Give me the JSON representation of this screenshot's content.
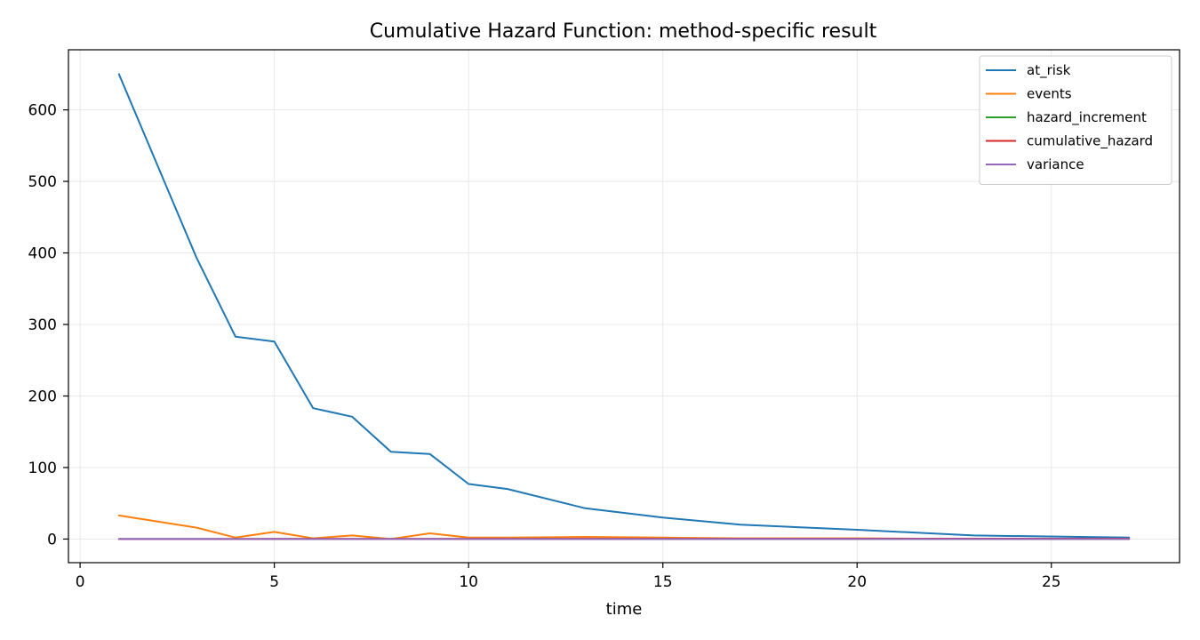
{
  "chart_data": {
    "type": "line",
    "title": "Cumulative Hazard Function: method-specific result",
    "xlabel": "time",
    "ylabel": "",
    "xlim": [
      -0.3,
      28.3
    ],
    "ylim": [
      -33,
      684
    ],
    "xticks": [
      0,
      5,
      10,
      15,
      20,
      25
    ],
    "yticks": [
      0,
      100,
      200,
      300,
      400,
      500,
      600
    ],
    "grid": true,
    "legend_position": "top-right",
    "series": [
      {
        "name": "at_risk",
        "color": "#1f77b4",
        "x": [
          1,
          3,
          4,
          5,
          6,
          7,
          8,
          9,
          10,
          11,
          13,
          15,
          17,
          20,
          23,
          27
        ],
        "y": [
          650,
          393,
          283,
          276,
          183,
          171,
          122,
          119,
          77,
          70,
          43,
          30,
          20,
          13,
          5,
          2
        ]
      },
      {
        "name": "events",
        "color": "#ff7f0e",
        "x": [
          1,
          3,
          4,
          5,
          6,
          7,
          8,
          9,
          10,
          11,
          13,
          15,
          17,
          20,
          23,
          27
        ],
        "y": [
          33,
          16,
          2,
          10,
          1,
          5,
          0,
          8,
          2,
          2,
          3,
          2,
          1,
          1,
          0,
          0
        ]
      },
      {
        "name": "hazard_increment",
        "color": "#2ca02c",
        "x": [
          1,
          3,
          4,
          5,
          6,
          7,
          8,
          9,
          10,
          11,
          13,
          15,
          17,
          20,
          23,
          27
        ],
        "y": [
          0.05,
          0.04,
          0.01,
          0.04,
          0.01,
          0.03,
          0,
          0.07,
          0.03,
          0.03,
          0.07,
          0.07,
          0.05,
          0.08,
          0,
          0
        ]
      },
      {
        "name": "cumulative_hazard",
        "color": "#d62728",
        "x": [
          1,
          3,
          4,
          5,
          6,
          7,
          8,
          9,
          10,
          11,
          13,
          15,
          17,
          20,
          23,
          27
        ],
        "y": [
          0.05,
          0.09,
          0.1,
          0.14,
          0.15,
          0.18,
          0.18,
          0.25,
          0.28,
          0.31,
          0.38,
          0.45,
          0.5,
          0.58,
          0.58,
          0.58
        ]
      },
      {
        "name": "variance",
        "color": "#9467bd",
        "x": [
          1,
          3,
          4,
          5,
          6,
          7,
          8,
          9,
          10,
          11,
          13,
          15,
          17,
          20,
          23,
          27
        ],
        "y": [
          0.0001,
          0.0002,
          0.0002,
          0.0003,
          0.0003,
          0.0005,
          0.0005,
          0.001,
          0.0013,
          0.0017,
          0.003,
          0.005,
          0.007,
          0.012,
          0.012,
          0.012
        ]
      }
    ]
  }
}
